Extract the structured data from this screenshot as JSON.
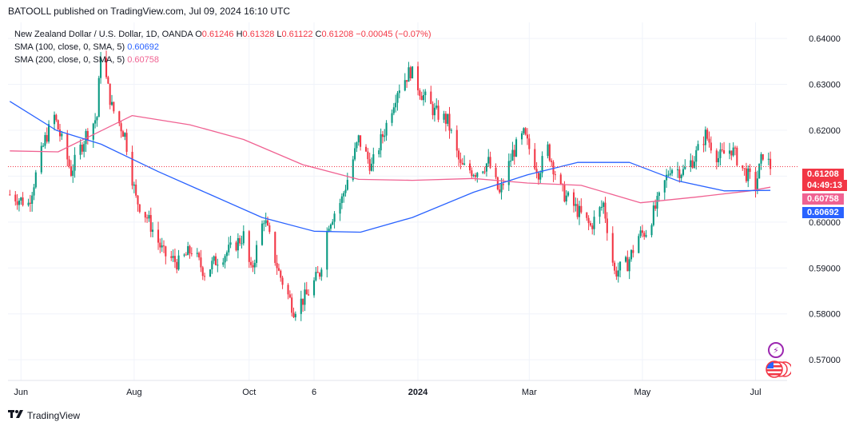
{
  "publisher": "BATOOLL published on TradingView.com, Jul 09, 2024 16:10 UTC",
  "brand": {
    "name": "TradingView",
    "logo_icon": "tradingview-logo-icon"
  },
  "legend": {
    "symbol": "New Zealand Dollar / U.S. Dollar, 1D, OANDA",
    "o_label": "O",
    "o": "0.61246",
    "h_label": "H",
    "h": "0.61328",
    "l_label": "L",
    "l": "0.61122",
    "c_label": "C",
    "c": "0.61208",
    "change": "−0.00045 (−0.07%)",
    "sma100_label": "SMA (100, close, 0, SMA, 5)",
    "sma100": "0.60692",
    "sma200_label": "SMA (200, close, 0, SMA, 5)",
    "sma200": "0.60758"
  },
  "badges": {
    "price": "0.61208",
    "countdown": "04:49:13",
    "sma200": "0.60758",
    "sma100": "0.60692"
  },
  "icons": {
    "alert": "lightning-icon",
    "flag": "us-flag-icon"
  },
  "colors": {
    "up": "#089981",
    "down": "#f23645",
    "sma100": "#2962ff",
    "sma200": "#f06292",
    "grid": "#f0f3fa",
    "axis_text": "#131722"
  },
  "chart_data": {
    "type": "candlestick",
    "title": "",
    "x_ticks": [
      "Jun",
      "Aug",
      "Oct",
      "6",
      "2024",
      "Mar",
      "May",
      "Jul"
    ],
    "y_ticks": [
      "0.64000",
      "0.63000",
      "0.62000",
      "0.61000",
      "0.60000",
      "0.59000",
      "0.58000",
      "0.57000"
    ],
    "ylim": [
      0.5655,
      0.6435
    ],
    "xlim": [
      "2023-05-25",
      "2024-07-18"
    ],
    "last_price": 0.61208,
    "grid": true,
    "keypoints": [
      [
        "2023-05-26",
        0.606
      ],
      [
        "2023-06-05",
        0.604
      ],
      [
        "2023-06-14",
        0.618
      ],
      [
        "2023-06-19",
        0.623
      ],
      [
        "2023-06-28",
        0.611
      ],
      [
        "2023-07-06",
        0.619
      ],
      [
        "2023-07-12",
        0.623
      ],
      [
        "2023-07-14",
        0.637
      ],
      [
        "2023-07-20",
        0.625
      ],
      [
        "2023-07-27",
        0.619
      ],
      [
        "2023-08-02",
        0.605
      ],
      [
        "2023-08-08",
        0.601
      ],
      [
        "2023-08-17",
        0.593
      ],
      [
        "2023-08-25",
        0.591
      ],
      [
        "2023-09-01",
        0.594
      ],
      [
        "2023-09-08",
        0.589
      ],
      [
        "2023-09-15",
        0.592
      ],
      [
        "2023-09-22",
        0.594
      ],
      [
        "2023-09-29",
        0.597
      ],
      [
        "2023-10-03",
        0.589
      ],
      [
        "2023-10-10",
        0.601
      ],
      [
        "2023-10-18",
        0.589
      ],
      [
        "2023-10-26",
        0.581
      ],
      [
        "2023-11-02",
        0.584
      ],
      [
        "2023-11-09",
        0.589
      ],
      [
        "2023-11-14",
        0.6
      ],
      [
        "2023-11-21",
        0.605
      ],
      [
        "2023-11-30",
        0.618
      ],
      [
        "2023-12-07",
        0.612
      ],
      [
        "2023-12-14",
        0.62
      ],
      [
        "2023-12-21",
        0.629
      ],
      [
        "2023-12-28",
        0.633
      ],
      [
        "2024-01-03",
        0.628
      ],
      [
        "2024-01-10",
        0.624
      ],
      [
        "2024-01-17",
        0.622
      ],
      [
        "2024-01-24",
        0.612
      ],
      [
        "2024-02-01",
        0.611
      ],
      [
        "2024-02-08",
        0.613
      ],
      [
        "2024-02-14",
        0.606
      ],
      [
        "2024-02-21",
        0.615
      ],
      [
        "2024-02-27",
        0.619
      ],
      [
        "2024-03-06",
        0.611
      ],
      [
        "2024-03-11",
        0.616
      ],
      [
        "2024-03-18",
        0.607
      ],
      [
        "2024-03-26",
        0.603
      ],
      [
        "2024-04-03",
        0.599
      ],
      [
        "2024-04-10",
        0.604
      ],
      [
        "2024-04-16",
        0.589
      ],
      [
        "2024-04-23",
        0.591
      ],
      [
        "2024-04-29",
        0.597
      ],
      [
        "2024-05-03",
        0.598
      ],
      [
        "2024-05-10",
        0.605
      ],
      [
        "2024-05-16",
        0.612
      ],
      [
        "2024-05-23",
        0.611
      ],
      [
        "2024-05-29",
        0.614
      ],
      [
        "2024-06-04",
        0.619
      ],
      [
        "2024-06-11",
        0.614
      ],
      [
        "2024-06-18",
        0.616
      ],
      [
        "2024-06-25",
        0.611
      ],
      [
        "2024-07-01",
        0.608
      ],
      [
        "2024-07-05",
        0.615
      ],
      [
        "2024-07-09",
        0.6121
      ]
    ],
    "sma100": [
      [
        "2023-05-26",
        0.6263
      ],
      [
        "2023-06-20",
        0.62
      ],
      [
        "2023-07-14",
        0.617
      ],
      [
        "2023-08-14",
        0.611
      ],
      [
        "2023-09-11",
        0.606
      ],
      [
        "2023-10-09",
        0.601
      ],
      [
        "2023-11-06",
        0.598
      ],
      [
        "2023-12-01",
        0.5978
      ],
      [
        "2023-12-29",
        0.601
      ],
      [
        "2024-01-31",
        0.6065
      ],
      [
        "2024-02-29",
        0.6103
      ],
      [
        "2024-03-27",
        0.613
      ],
      [
        "2024-04-24",
        0.613
      ],
      [
        "2024-05-20",
        0.609
      ],
      [
        "2024-06-14",
        0.6068
      ],
      [
        "2024-07-09",
        0.6069
      ]
    ],
    "sma200": [
      [
        "2023-05-26",
        0.6155
      ],
      [
        "2023-06-21",
        0.6153
      ],
      [
        "2023-07-31",
        0.6232
      ],
      [
        "2023-08-31",
        0.6212
      ],
      [
        "2023-09-29",
        0.618
      ],
      [
        "2023-10-31",
        0.6125
      ],
      [
        "2023-11-30",
        0.6093
      ],
      [
        "2023-12-29",
        0.6091
      ],
      [
        "2024-01-31",
        0.6095
      ],
      [
        "2024-02-29",
        0.6085
      ],
      [
        "2024-03-29",
        0.608
      ],
      [
        "2024-04-30",
        0.6042
      ],
      [
        "2024-05-31",
        0.6055
      ],
      [
        "2024-06-28",
        0.6068
      ],
      [
        "2024-07-09",
        0.6076
      ]
    ]
  }
}
